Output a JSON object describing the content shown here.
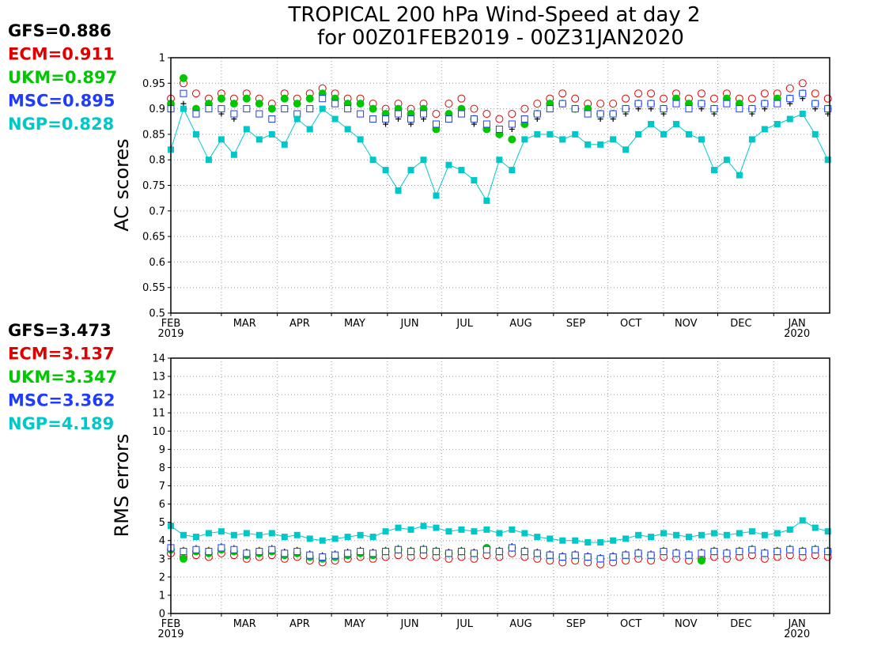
{
  "title_line1": "TROPICAL 200 hPa Wind-Speed at day 2",
  "title_line2": "for 00Z01FEB2019 - 00Z31JAN2020",
  "colors": {
    "GFS": "#000000",
    "ECM": "#e00000",
    "UKM": "#00c800",
    "MSC": "#1e3cff",
    "NGP": "#00c8c8"
  },
  "ac_legend": [
    {
      "model": "GFS",
      "label": "GFS=0.886"
    },
    {
      "model": "ECM",
      "label": "ECM=0.911"
    },
    {
      "model": "UKM",
      "label": "UKM=0.897"
    },
    {
      "model": "MSC",
      "label": "MSC=0.895"
    },
    {
      "model": "NGP",
      "label": "NGP=0.828"
    }
  ],
  "rms_legend": [
    {
      "model": "GFS",
      "label": "GFS=3.473"
    },
    {
      "model": "ECM",
      "label": "ECM=3.137"
    },
    {
      "model": "UKM",
      "label": "UKM=3.347"
    },
    {
      "model": "MSC",
      "label": "MSC=3.362"
    },
    {
      "model": "NGP",
      "label": "NGP=4.189"
    }
  ],
  "x_axis": {
    "months": [
      "FEB",
      "MAR",
      "APR",
      "MAY",
      "JUN",
      "JUL",
      "AUG",
      "SEP",
      "OCT",
      "NOV",
      "DEC",
      "JAN"
    ],
    "month_start_days": [
      0,
      28,
      59,
      89,
      120,
      150,
      181,
      212,
      242,
      273,
      303,
      334
    ],
    "sublabels": [
      {
        "month": "FEB",
        "text": "2019"
      },
      {
        "month": "JAN",
        "text": "2020"
      }
    ],
    "range_days": [
      0,
      365
    ]
  },
  "chart_data": [
    {
      "type": "scatter",
      "panel": "AC scores",
      "ylabel": "AC scores",
      "ylim": [
        0.5,
        1
      ],
      "yticks": [
        "0.5",
        "0.55",
        "0.6",
        "0.65",
        "0.7",
        "0.75",
        "0.8",
        "0.85",
        "0.9",
        "0.95",
        "1"
      ],
      "grid": true,
      "sample_every_days": 7,
      "series": [
        {
          "name": "GFS",
          "marker": "plus",
          "values": [
            0.9,
            0.91,
            0.89,
            0.9,
            0.89,
            0.88,
            0.9,
            0.89,
            0.88,
            0.9,
            0.89,
            0.9,
            0.92,
            0.91,
            0.9,
            0.89,
            0.88,
            0.87,
            0.88,
            0.87,
            0.88,
            0.86,
            0.88,
            0.89,
            0.87,
            0.86,
            0.85,
            0.86,
            0.87,
            0.88,
            0.9,
            0.91,
            0.9,
            0.89,
            0.88,
            0.88,
            0.89,
            0.9,
            0.9,
            0.89,
            0.91,
            0.9,
            0.9,
            0.89,
            0.91,
            0.9,
            0.89,
            0.9,
            0.91,
            0.91,
            0.92,
            0.9,
            0.89
          ]
        },
        {
          "name": "ECM",
          "marker": "circle",
          "values": [
            0.92,
            0.95,
            0.93,
            0.92,
            0.93,
            0.92,
            0.93,
            0.92,
            0.91,
            0.93,
            0.92,
            0.93,
            0.94,
            0.93,
            0.92,
            0.92,
            0.91,
            0.9,
            0.91,
            0.9,
            0.91,
            0.89,
            0.91,
            0.92,
            0.9,
            0.89,
            0.88,
            0.89,
            0.9,
            0.91,
            0.92,
            0.93,
            0.92,
            0.91,
            0.91,
            0.91,
            0.92,
            0.93,
            0.93,
            0.92,
            0.93,
            0.92,
            0.93,
            0.92,
            0.93,
            0.92,
            0.92,
            0.93,
            0.93,
            0.94,
            0.95,
            0.93,
            0.92
          ]
        },
        {
          "name": "UKM",
          "marker": "dot",
          "values": [
            0.91,
            0.96,
            0.9,
            0.91,
            0.92,
            0.91,
            0.92,
            0.91,
            0.9,
            0.92,
            0.91,
            0.92,
            0.93,
            0.92,
            0.91,
            0.91,
            0.9,
            0.89,
            0.9,
            0.89,
            0.9,
            0.86,
            0.89,
            0.9,
            0.88,
            0.86,
            0.85,
            0.84,
            0.87,
            0.89,
            0.91,
            0.91,
            0.9,
            0.9,
            0.89,
            0.89,
            0.9,
            0.91,
            0.91,
            0.9,
            0.92,
            0.91,
            0.91,
            0.9,
            0.92,
            0.91,
            0.9,
            0.91,
            0.92,
            0.92,
            0.93,
            0.91,
            0.9
          ]
        },
        {
          "name": "MSC",
          "marker": "square",
          "values": [
            0.9,
            0.93,
            0.89,
            0.9,
            0.9,
            0.89,
            0.9,
            0.89,
            0.88,
            0.9,
            0.89,
            0.9,
            0.92,
            0.91,
            0.9,
            0.89,
            0.88,
            0.88,
            0.89,
            0.88,
            0.89,
            0.87,
            0.88,
            0.89,
            0.88,
            0.87,
            0.86,
            0.87,
            0.88,
            0.89,
            0.9,
            0.91,
            0.9,
            0.89,
            0.89,
            0.89,
            0.9,
            0.91,
            0.91,
            0.9,
            0.91,
            0.9,
            0.91,
            0.9,
            0.91,
            0.9,
            0.9,
            0.91,
            0.91,
            0.92,
            0.93,
            0.91,
            0.9
          ]
        },
        {
          "name": "NGP",
          "marker": "filled-square",
          "values": [
            0.82,
            0.9,
            0.85,
            0.8,
            0.84,
            0.81,
            0.86,
            0.84,
            0.85,
            0.83,
            0.88,
            0.86,
            0.9,
            0.88,
            0.86,
            0.84,
            0.8,
            0.78,
            0.74,
            0.78,
            0.8,
            0.73,
            0.79,
            0.78,
            0.76,
            0.72,
            0.8,
            0.78,
            0.84,
            0.85,
            0.85,
            0.84,
            0.85,
            0.83,
            0.83,
            0.84,
            0.82,
            0.85,
            0.87,
            0.85,
            0.87,
            0.85,
            0.84,
            0.78,
            0.8,
            0.77,
            0.84,
            0.86,
            0.87,
            0.88,
            0.89,
            0.85,
            0.8
          ]
        }
      ]
    },
    {
      "type": "scatter",
      "panel": "RMS errors",
      "ylabel": "RMS errors",
      "ylim": [
        0,
        14
      ],
      "yticks": [
        "0",
        "1",
        "2",
        "3",
        "4",
        "5",
        "6",
        "7",
        "8",
        "9",
        "10",
        "11",
        "12",
        "13",
        "14"
      ],
      "grid": true,
      "sample_every_days": 7,
      "series": [
        {
          "name": "GFS",
          "marker": "plus",
          "values": [
            3.6,
            3.5,
            3.6,
            3.5,
            3.7,
            3.6,
            3.4,
            3.5,
            3.6,
            3.4,
            3.5,
            3.3,
            3.2,
            3.3,
            3.4,
            3.5,
            3.4,
            3.5,
            3.6,
            3.5,
            3.6,
            3.5,
            3.4,
            3.5,
            3.4,
            3.6,
            3.5,
            3.7,
            3.5,
            3.4,
            3.3,
            3.2,
            3.3,
            3.2,
            3.1,
            3.2,
            3.3,
            3.4,
            3.3,
            3.5,
            3.4,
            3.3,
            3.4,
            3.5,
            3.4,
            3.5,
            3.6,
            3.4,
            3.5,
            3.6,
            3.5,
            3.6,
            3.5
          ]
        },
        {
          "name": "ECM",
          "marker": "circle",
          "values": [
            3.3,
            3.1,
            3.2,
            3.1,
            3.3,
            3.2,
            3.0,
            3.1,
            3.2,
            3.0,
            3.1,
            2.9,
            2.8,
            2.9,
            3.0,
            3.1,
            3.0,
            3.1,
            3.2,
            3.1,
            3.2,
            3.1,
            3.0,
            3.1,
            3.0,
            3.2,
            3.1,
            3.3,
            3.1,
            3.0,
            2.9,
            2.8,
            2.9,
            2.8,
            2.7,
            2.8,
            2.9,
            3.0,
            2.9,
            3.1,
            3.0,
            2.9,
            3.0,
            3.1,
            3.0,
            3.1,
            3.2,
            3.0,
            3.1,
            3.2,
            3.1,
            3.2,
            3.1
          ]
        },
        {
          "name": "UKM",
          "marker": "dot",
          "values": [
            3.5,
            3.0,
            3.4,
            3.3,
            3.5,
            3.4,
            3.2,
            3.3,
            3.4,
            3.2,
            3.3,
            3.1,
            3.0,
            3.1,
            3.2,
            3.3,
            3.2,
            3.4,
            3.5,
            3.4,
            3.5,
            3.4,
            3.3,
            3.4,
            3.3,
            3.6,
            3.4,
            3.6,
            3.4,
            3.3,
            3.2,
            3.1,
            3.2,
            3.1,
            3.0,
            3.1,
            3.2,
            3.3,
            3.2,
            3.4,
            3.3,
            3.2,
            2.9,
            3.4,
            3.3,
            3.4,
            3.5,
            3.3,
            3.4,
            3.5,
            3.4,
            3.5,
            3.4
          ]
        },
        {
          "name": "MSC",
          "marker": "square",
          "values": [
            3.6,
            3.4,
            3.5,
            3.4,
            3.6,
            3.5,
            3.3,
            3.4,
            3.5,
            3.3,
            3.4,
            3.2,
            3.1,
            3.2,
            3.3,
            3.4,
            3.3,
            3.4,
            3.5,
            3.4,
            3.5,
            3.4,
            3.3,
            3.4,
            3.3,
            3.5,
            3.4,
            3.6,
            3.4,
            3.3,
            3.2,
            3.1,
            3.2,
            3.1,
            3.0,
            3.1,
            3.2,
            3.3,
            3.2,
            3.4,
            3.3,
            3.2,
            3.3,
            3.4,
            3.3,
            3.4,
            3.5,
            3.3,
            3.4,
            3.5,
            3.4,
            3.5,
            3.4
          ]
        },
        {
          "name": "NGP",
          "marker": "filled-square",
          "values": [
            4.8,
            4.3,
            4.2,
            4.4,
            4.5,
            4.3,
            4.4,
            4.3,
            4.4,
            4.2,
            4.3,
            4.1,
            4.0,
            4.1,
            4.2,
            4.3,
            4.2,
            4.5,
            4.7,
            4.6,
            4.8,
            4.7,
            4.5,
            4.6,
            4.5,
            4.6,
            4.4,
            4.6,
            4.4,
            4.2,
            4.1,
            4.0,
            4.0,
            3.9,
            3.9,
            4.0,
            4.1,
            4.3,
            4.2,
            4.4,
            4.3,
            4.2,
            4.3,
            4.4,
            4.3,
            4.4,
            4.5,
            4.3,
            4.4,
            4.6,
            5.1,
            4.7,
            4.5
          ]
        }
      ]
    }
  ]
}
